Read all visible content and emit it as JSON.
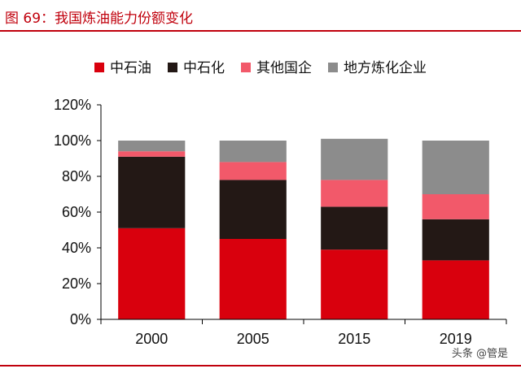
{
  "figure": {
    "title": "图 69：我国炼油能力份额变化",
    "watermark": "头条 @管是"
  },
  "chart_data": {
    "type": "bar",
    "stacked": true,
    "categories": [
      "2000",
      "2005",
      "2015",
      "2019"
    ],
    "series": [
      {
        "name": "中石油",
        "color": "#d9000d",
        "values": [
          51,
          45,
          39,
          33
        ]
      },
      {
        "name": "中石化",
        "color": "#231815",
        "values": [
          40,
          33,
          24,
          23
        ]
      },
      {
        "name": "其他国企",
        "color": "#f2596a",
        "values": [
          3,
          10,
          15,
          14
        ]
      },
      {
        "name": "地方炼化企业",
        "color": "#8c8c8c",
        "values": [
          6,
          12,
          23,
          30
        ]
      }
    ],
    "ylim": [
      0,
      120
    ],
    "yticks": [
      "0%",
      "20%",
      "40%",
      "60%",
      "80%",
      "100%",
      "120%"
    ],
    "grid": false,
    "legend": "top"
  }
}
